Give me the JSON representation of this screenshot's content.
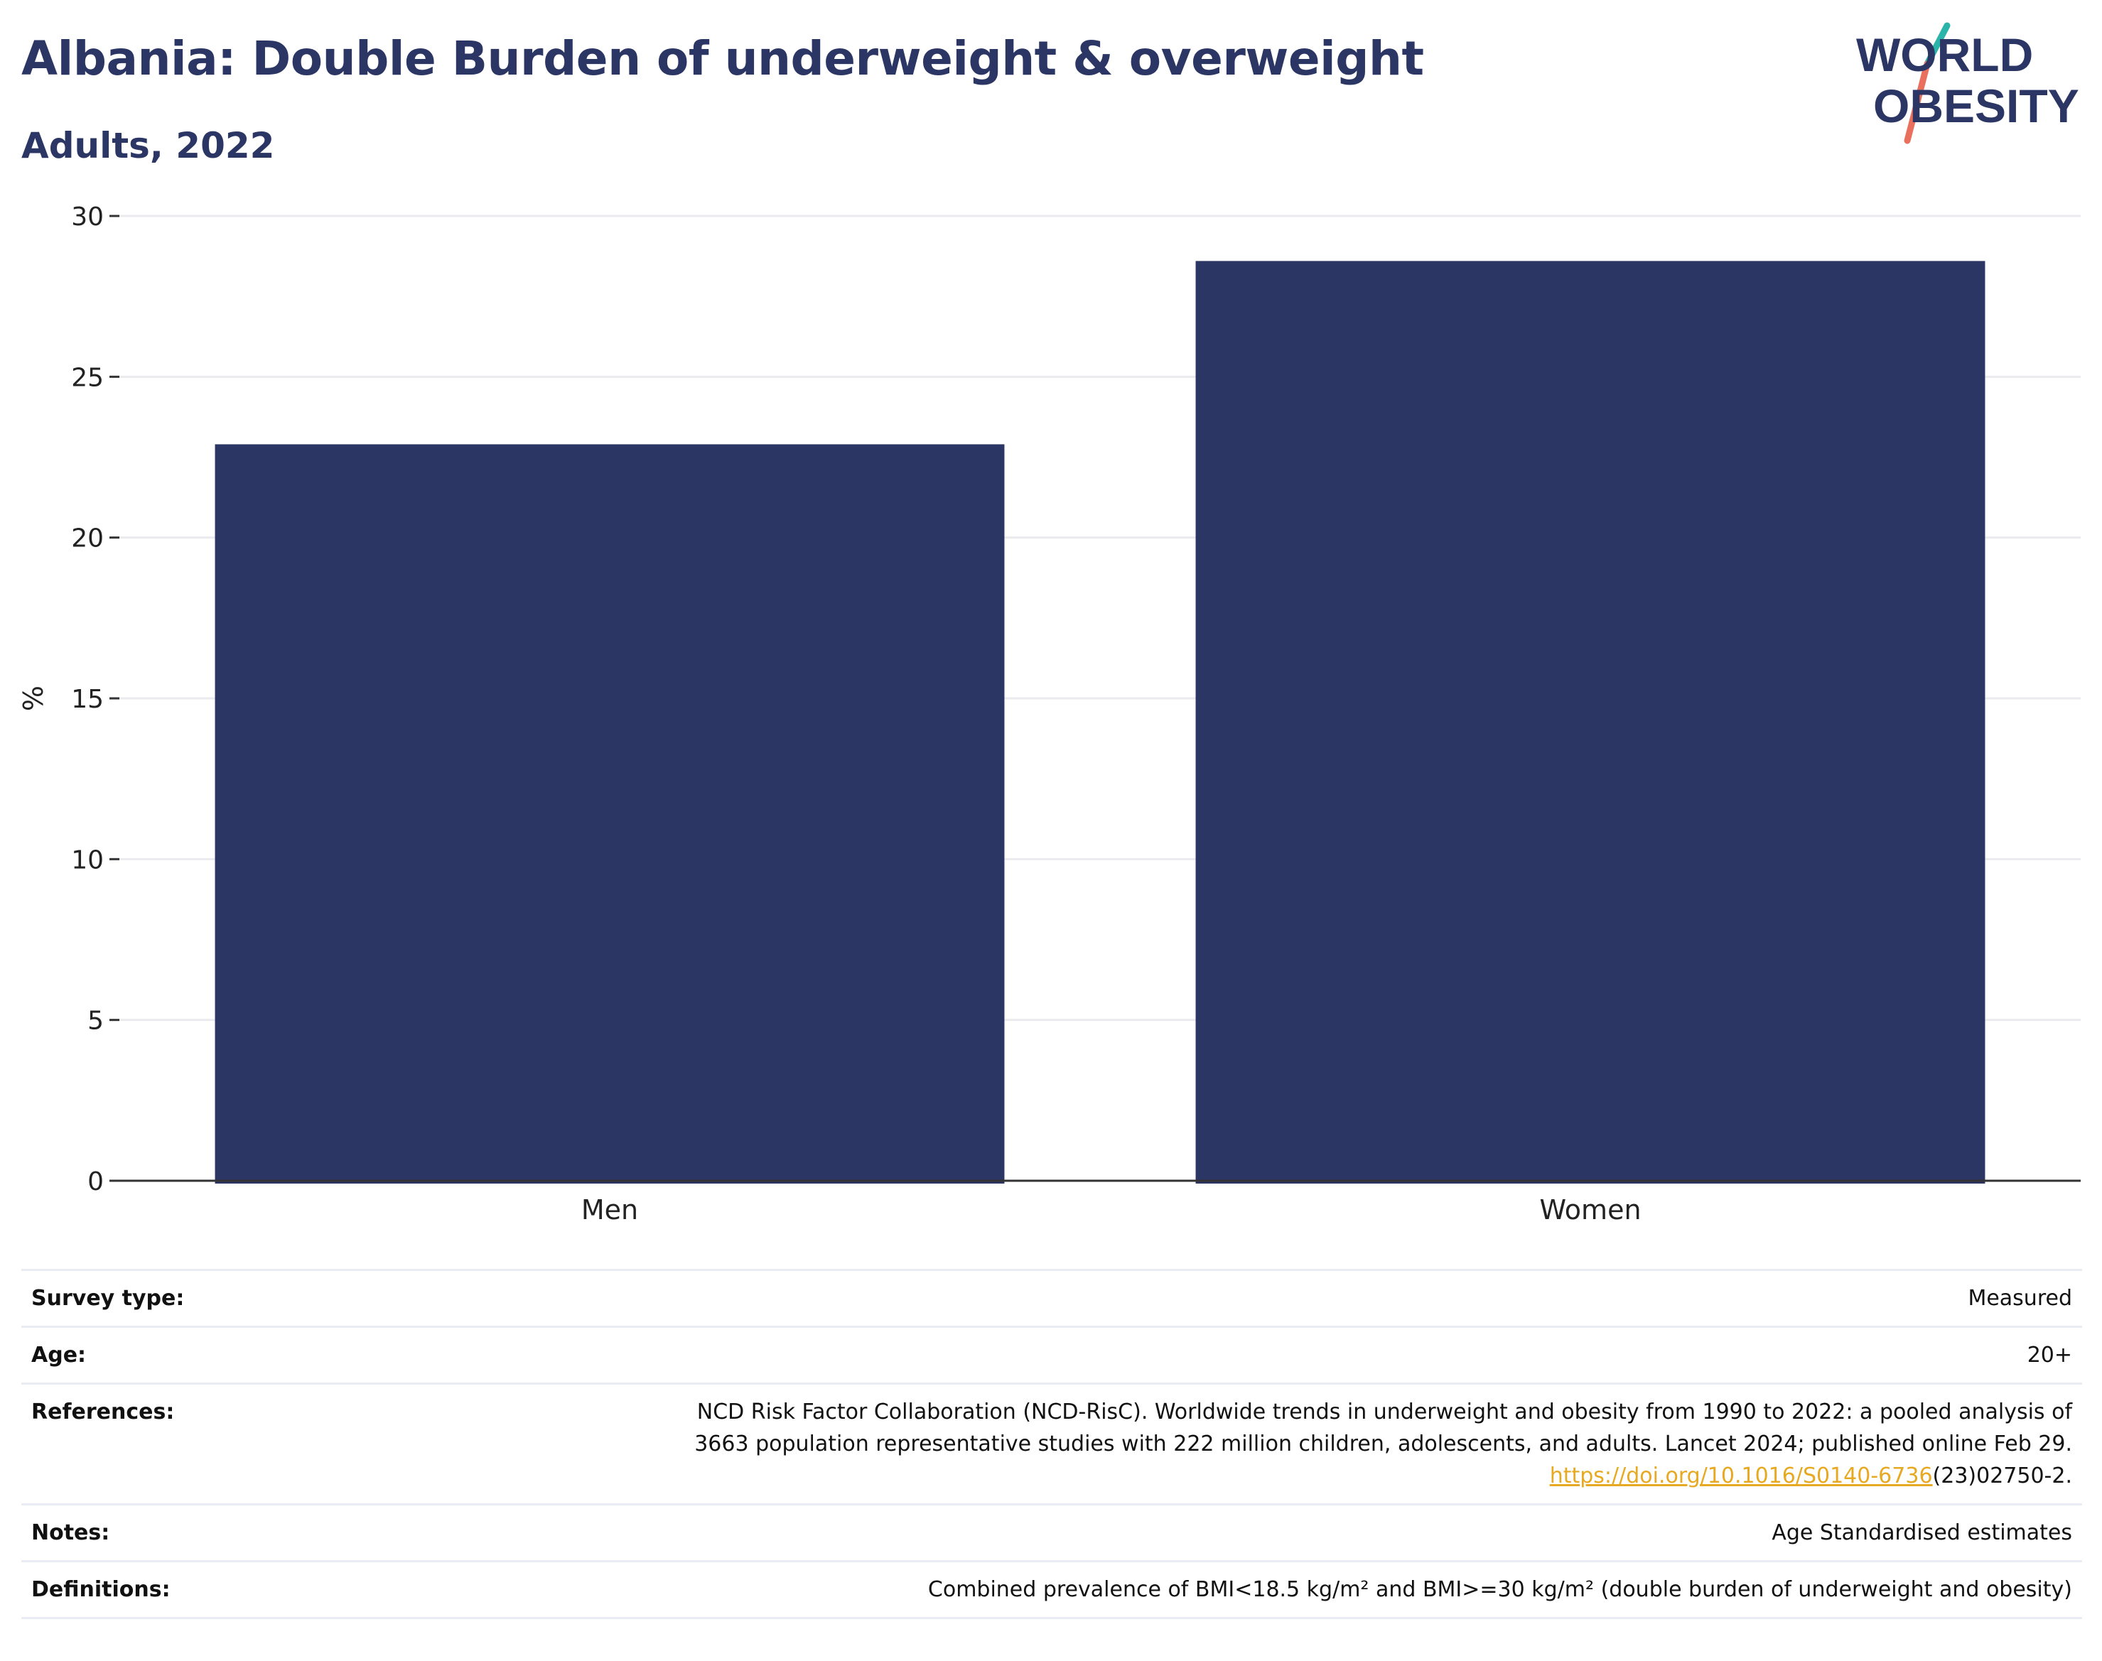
{
  "header": {
    "title": "Albania: Double Burden of underweight & overweight",
    "subtitle": "Adults, 2022"
  },
  "logo": {
    "line1": "WORLD",
    "line2": "OBESITY",
    "slash_colors": [
      "#2bb4a9",
      "#e8705c"
    ],
    "text_color": "#2b3664"
  },
  "chart_data": {
    "type": "bar",
    "categories": [
      "Men",
      "Women"
    ],
    "values": [
      22.9,
      28.6
    ],
    "ylabel": "%",
    "xlabel": "",
    "ylim": [
      0,
      30
    ],
    "yticks": [
      0,
      5,
      10,
      15,
      20,
      25,
      30
    ],
    "grid": true,
    "bar_color": "#2b3664"
  },
  "info": {
    "survey_type": {
      "label": "Survey type:",
      "value": "Measured"
    },
    "age": {
      "label": "Age:",
      "value": "20+"
    },
    "references": {
      "label": "References:",
      "line1": "NCD Risk Factor Collaboration (NCD-RisC). Worldwide trends in underweight and obesity from 1990 to 2022: a pooled analysis of",
      "line2": "3663 population representative studies with 222 million children, adolescents, and adults. Lancet 2024; published online Feb 29.",
      "link": "https://doi.org/10.1016/S0140-6736",
      "link_suffix": "(23)02750-2."
    },
    "notes": {
      "label": "Notes:",
      "value": "Age Standardised estimates"
    },
    "definitions": {
      "label": "Definitions:",
      "value": "Combined prevalence of BMI<18.5 kg/m² and BMI>=30 kg/m² (double burden of underweight and obesity)"
    }
  }
}
